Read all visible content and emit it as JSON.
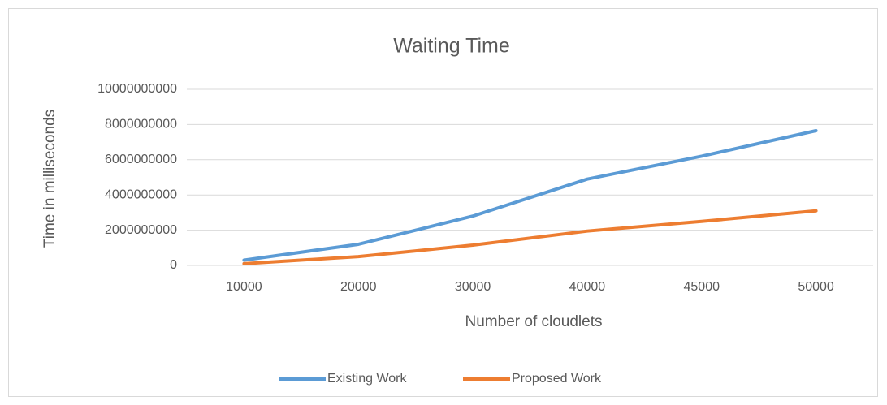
{
  "chart_data": {
    "type": "line",
    "title": "Waiting Time",
    "x_label": "Number of cloudlets",
    "y_label": "Time in milliseconds",
    "categories": [
      "10000",
      "20000",
      "30000",
      "40000",
      "45000",
      "50000"
    ],
    "series": [
      {
        "name": "Existing Work",
        "color": "#5b9bd5",
        "values": [
          300000000,
          1200000000,
          2800000000,
          4900000000,
          6200000000,
          7650000000
        ]
      },
      {
        "name": "Proposed Work",
        "color": "#ed7d31",
        "values": [
          100000000,
          500000000,
          1150000000,
          1950000000,
          2500000000,
          3100000000
        ]
      }
    ],
    "ylim": [
      0,
      10000000000
    ],
    "yticks": [
      0,
      2000000000,
      4000000000,
      6000000000,
      8000000000,
      10000000000
    ],
    "grid": true,
    "legend": "bottom"
  }
}
